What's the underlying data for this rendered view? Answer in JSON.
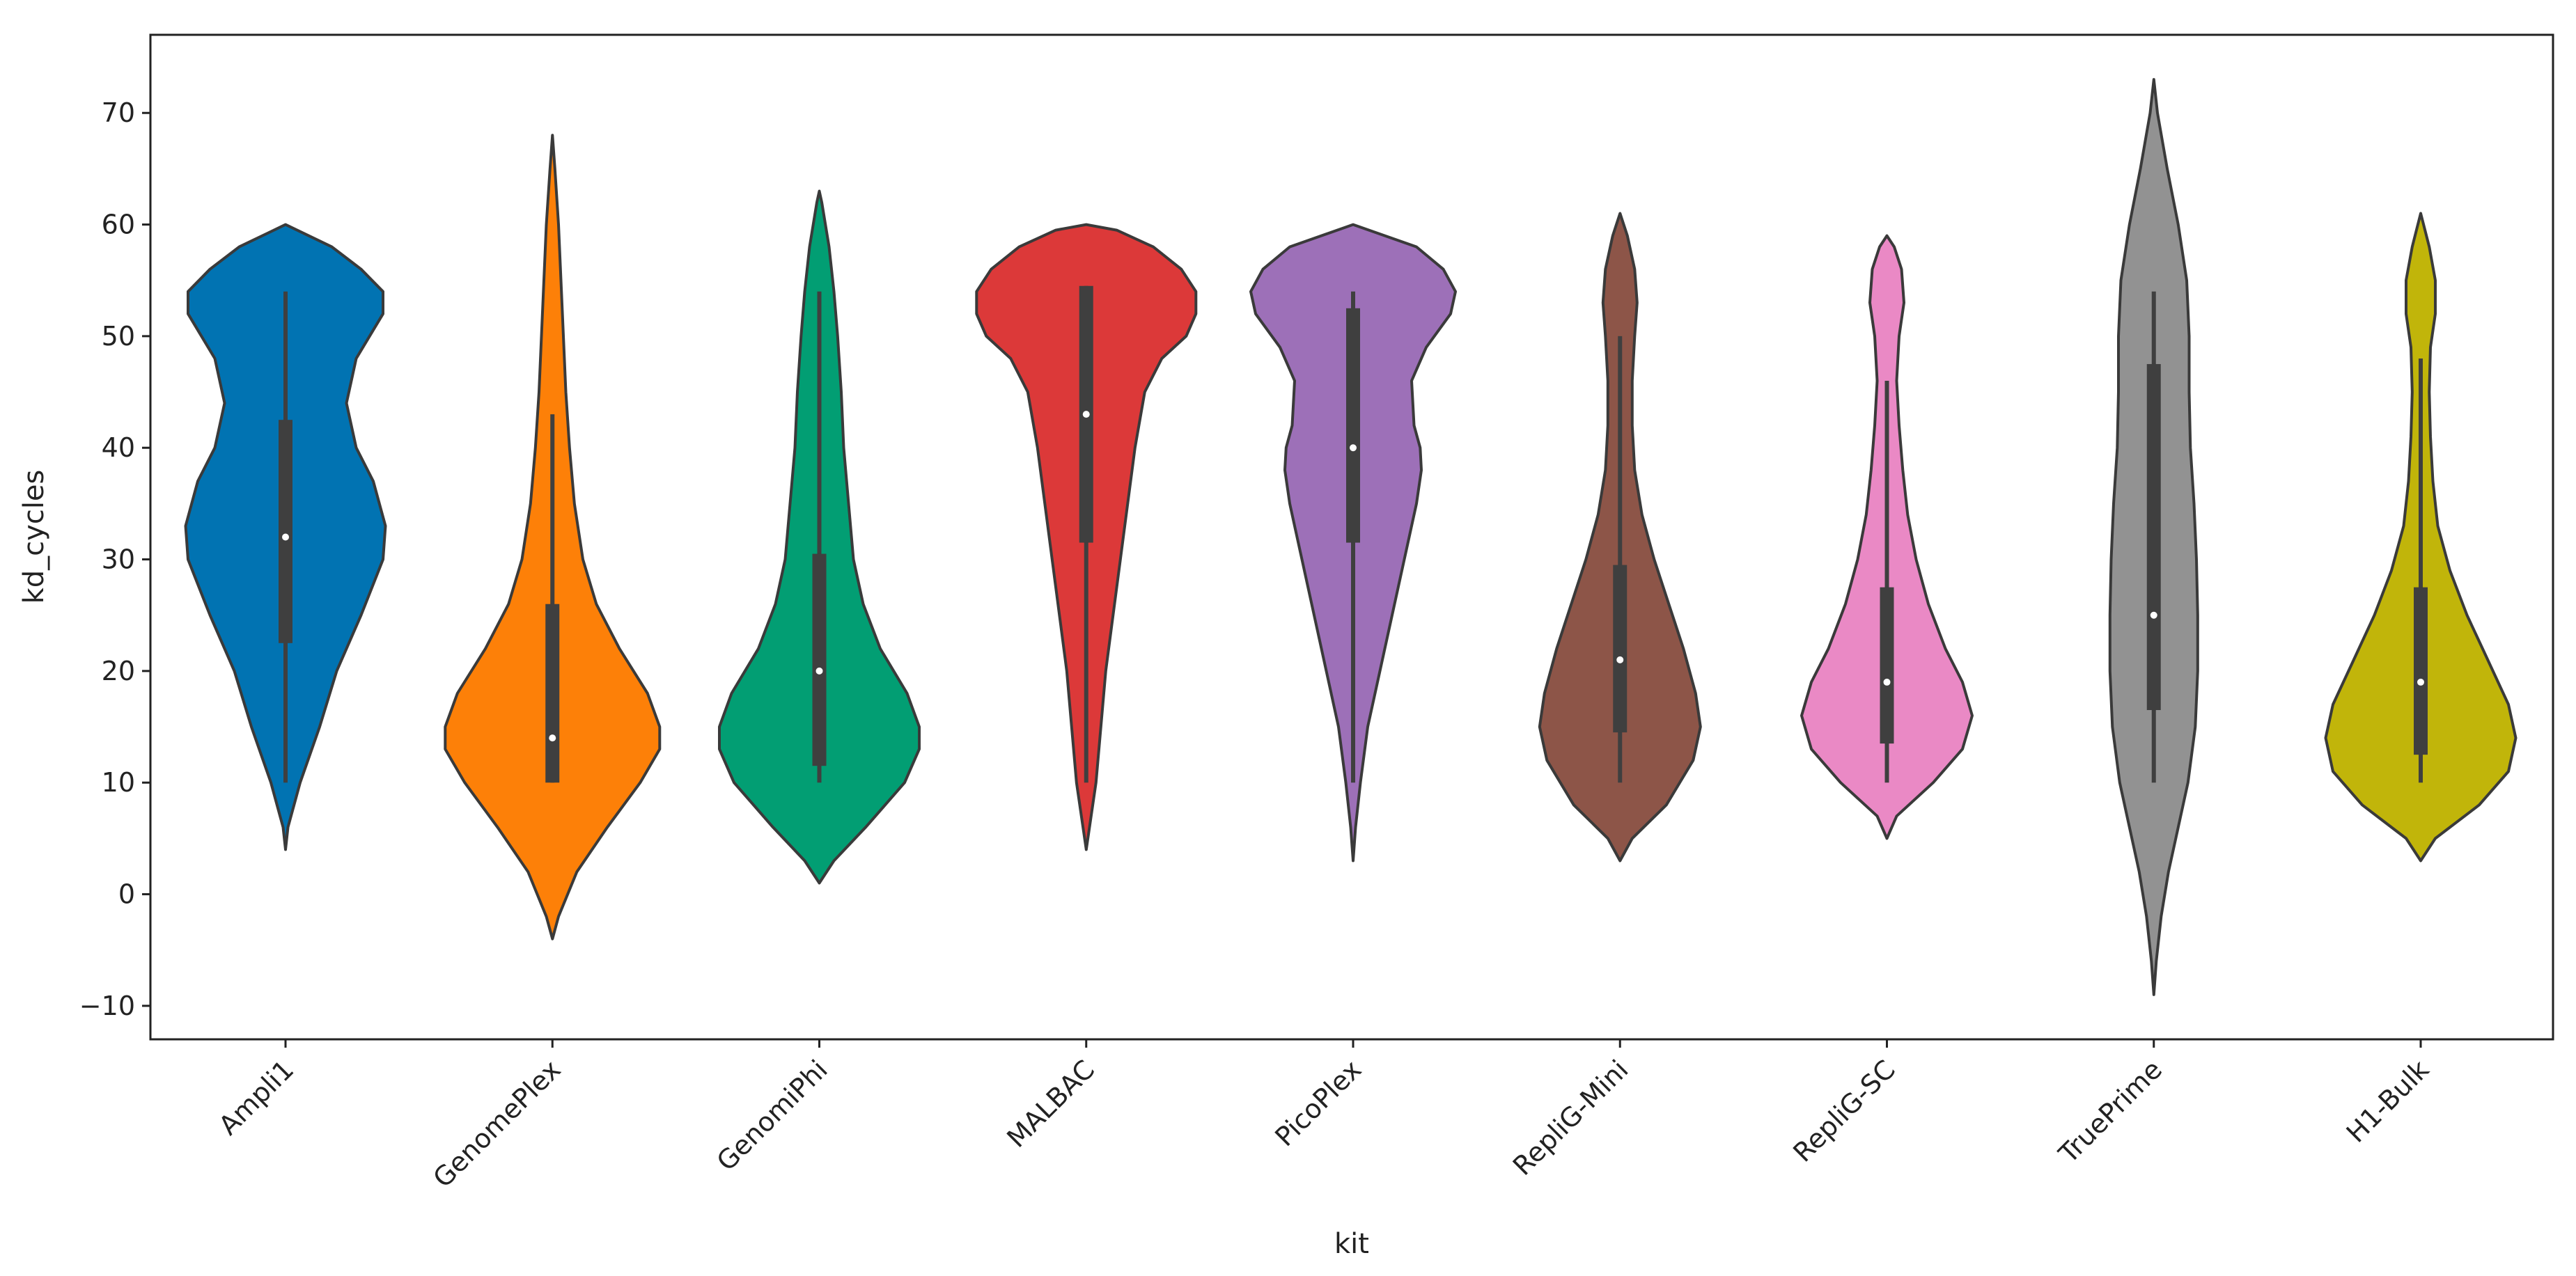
{
  "chart_data": {
    "type": "violin",
    "xlabel": "kit",
    "ylabel": "kd_cycles",
    "ylim": [
      -13,
      77
    ],
    "yticks": [
      -10,
      0,
      10,
      20,
      30,
      40,
      50,
      60,
      70
    ],
    "categories": [
      "Ampli1",
      "GenomePlex",
      "GenomiPhi",
      "MALBAC",
      "PicoPlex",
      "RepliG-Mini",
      "RepliG-SC",
      "TruePrime",
      "H1-Bulk"
    ],
    "series": [
      {
        "category": "Ampli1",
        "color": "#0173b2",
        "kde_min": 4,
        "kde_max": 60,
        "profile": [
          [
            4,
            0.0
          ],
          [
            6,
            0.02
          ],
          [
            10,
            0.12
          ],
          [
            15,
            0.28
          ],
          [
            20,
            0.42
          ],
          [
            25,
            0.62
          ],
          [
            30,
            0.8
          ],
          [
            33,
            0.82
          ],
          [
            37,
            0.72
          ],
          [
            40,
            0.58
          ],
          [
            44,
            0.5
          ],
          [
            48,
            0.58
          ],
          [
            52,
            0.8
          ],
          [
            54,
            0.8
          ],
          [
            56,
            0.62
          ],
          [
            58,
            0.38
          ],
          [
            60,
            0.0
          ]
        ],
        "whisker_low": 10,
        "q1": 22.5,
        "median": 32,
        "q3": 42.5,
        "whisker_high": 54
      },
      {
        "category": "GenomePlex",
        "color": "#fd8008",
        "kde_min": -4,
        "kde_max": 68,
        "profile": [
          [
            -4,
            0.0
          ],
          [
            -2,
            0.05
          ],
          [
            2,
            0.2
          ],
          [
            6,
            0.45
          ],
          [
            10,
            0.72
          ],
          [
            13,
            0.88
          ],
          [
            15,
            0.88
          ],
          [
            18,
            0.78
          ],
          [
            22,
            0.55
          ],
          [
            26,
            0.36
          ],
          [
            30,
            0.25
          ],
          [
            35,
            0.18
          ],
          [
            40,
            0.14
          ],
          [
            45,
            0.11
          ],
          [
            50,
            0.09
          ],
          [
            55,
            0.07
          ],
          [
            60,
            0.05
          ],
          [
            65,
            0.02
          ],
          [
            68,
            0.0
          ]
        ],
        "whisker_low": 10,
        "q1": 10,
        "median": 14,
        "q3": 26,
        "whisker_high": 43
      },
      {
        "category": "GenomiPhi",
        "color": "#029e73",
        "kde_min": 1,
        "kde_max": 63,
        "profile": [
          [
            1,
            0.0
          ],
          [
            3,
            0.12
          ],
          [
            6,
            0.38
          ],
          [
            10,
            0.7
          ],
          [
            13,
            0.82
          ],
          [
            15,
            0.82
          ],
          [
            18,
            0.72
          ],
          [
            22,
            0.5
          ],
          [
            26,
            0.36
          ],
          [
            30,
            0.28
          ],
          [
            35,
            0.24
          ],
          [
            40,
            0.2
          ],
          [
            45,
            0.18
          ],
          [
            50,
            0.15
          ],
          [
            54,
            0.12
          ],
          [
            58,
            0.08
          ],
          [
            62,
            0.02
          ],
          [
            63,
            0.0
          ]
        ],
        "whisker_low": 10,
        "q1": 11.5,
        "median": 20,
        "q3": 30.5,
        "whisker_high": 54
      },
      {
        "category": "MALBAC",
        "color": "#dc3939",
        "kde_min": 4,
        "kde_max": 60,
        "profile": [
          [
            4,
            0.0
          ],
          [
            7,
            0.04
          ],
          [
            10,
            0.08
          ],
          [
            15,
            0.12
          ],
          [
            20,
            0.16
          ],
          [
            25,
            0.22
          ],
          [
            30,
            0.28
          ],
          [
            35,
            0.34
          ],
          [
            40,
            0.4
          ],
          [
            45,
            0.48
          ],
          [
            48,
            0.62
          ],
          [
            50,
            0.82
          ],
          [
            52,
            0.9
          ],
          [
            54,
            0.9
          ],
          [
            56,
            0.78
          ],
          [
            58,
            0.55
          ],
          [
            59.5,
            0.25
          ],
          [
            60,
            0.0
          ]
        ],
        "whisker_low": 10,
        "q1": 31.5,
        "median": 43,
        "q3": 54.5,
        "whisker_high": 54.5
      },
      {
        "category": "PicoPlex",
        "color": "#9d70b8",
        "kde_min": 3,
        "kde_max": 60,
        "profile": [
          [
            3,
            0.0
          ],
          [
            6,
            0.02
          ],
          [
            10,
            0.06
          ],
          [
            15,
            0.12
          ],
          [
            20,
            0.22
          ],
          [
            25,
            0.32
          ],
          [
            30,
            0.42
          ],
          [
            35,
            0.52
          ],
          [
            38,
            0.56
          ],
          [
            40,
            0.55
          ],
          [
            42,
            0.5
          ],
          [
            46,
            0.48
          ],
          [
            49,
            0.6
          ],
          [
            52,
            0.8
          ],
          [
            54,
            0.84
          ],
          [
            56,
            0.74
          ],
          [
            58,
            0.52
          ],
          [
            60,
            0.0
          ]
        ],
        "whisker_low": 10,
        "q1": 31.5,
        "median": 40,
        "q3": 52.5,
        "whisker_high": 54
      },
      {
        "category": "RepliG-Mini",
        "color": "#8d5548",
        "kde_min": 3,
        "kde_max": 61,
        "profile": [
          [
            3,
            0.0
          ],
          [
            5,
            0.1
          ],
          [
            8,
            0.38
          ],
          [
            12,
            0.6
          ],
          [
            15,
            0.66
          ],
          [
            18,
            0.62
          ],
          [
            22,
            0.52
          ],
          [
            26,
            0.4
          ],
          [
            30,
            0.28
          ],
          [
            34,
            0.18
          ],
          [
            38,
            0.12
          ],
          [
            42,
            0.1
          ],
          [
            46,
            0.1
          ],
          [
            50,
            0.12
          ],
          [
            53,
            0.14
          ],
          [
            56,
            0.12
          ],
          [
            59,
            0.06
          ],
          [
            61,
            0.0
          ]
        ],
        "whisker_low": 10,
        "q1": 14.5,
        "median": 21,
        "q3": 29.5,
        "whisker_high": 50
      },
      {
        "category": "RepliG-SC",
        "color": "#ea89c5",
        "kde_min": 5,
        "kde_max": 59,
        "profile": [
          [
            5,
            0.0
          ],
          [
            7,
            0.08
          ],
          [
            10,
            0.38
          ],
          [
            13,
            0.62
          ],
          [
            16,
            0.7
          ],
          [
            19,
            0.62
          ],
          [
            22,
            0.48
          ],
          [
            26,
            0.34
          ],
          [
            30,
            0.24
          ],
          [
            34,
            0.17
          ],
          [
            38,
            0.13
          ],
          [
            42,
            0.1
          ],
          [
            46,
            0.08
          ],
          [
            50,
            0.1
          ],
          [
            53,
            0.14
          ],
          [
            56,
            0.12
          ],
          [
            58,
            0.06
          ],
          [
            59,
            0.0
          ]
        ],
        "whisker_low": 10,
        "q1": 13.5,
        "median": 19,
        "q3": 27.5,
        "whisker_high": 46
      },
      {
        "category": "TruePrime",
        "color": "#929292",
        "kde_min": -9,
        "kde_max": 73,
        "profile": [
          [
            -9,
            0.0
          ],
          [
            -6,
            0.02
          ],
          [
            -2,
            0.06
          ],
          [
            2,
            0.12
          ],
          [
            6,
            0.2
          ],
          [
            10,
            0.28
          ],
          [
            15,
            0.34
          ],
          [
            20,
            0.36
          ],
          [
            25,
            0.36
          ],
          [
            30,
            0.35
          ],
          [
            35,
            0.33
          ],
          [
            40,
            0.3
          ],
          [
            45,
            0.29
          ],
          [
            50,
            0.29
          ],
          [
            55,
            0.27
          ],
          [
            60,
            0.2
          ],
          [
            65,
            0.11
          ],
          [
            70,
            0.03
          ],
          [
            73,
            0.0
          ]
        ],
        "whisker_low": 10,
        "q1": 16.5,
        "median": 25,
        "q3": 47.5,
        "whisker_high": 54
      },
      {
        "category": "H1-Bulk",
        "color": "#c1b50a",
        "kde_min": 3,
        "kde_max": 61,
        "profile": [
          [
            3,
            0.0
          ],
          [
            5,
            0.12
          ],
          [
            8,
            0.48
          ],
          [
            11,
            0.72
          ],
          [
            14,
            0.78
          ],
          [
            17,
            0.72
          ],
          [
            21,
            0.55
          ],
          [
            25,
            0.38
          ],
          [
            29,
            0.24
          ],
          [
            33,
            0.14
          ],
          [
            37,
            0.1
          ],
          [
            41,
            0.08
          ],
          [
            45,
            0.07
          ],
          [
            49,
            0.08
          ],
          [
            52,
            0.12
          ],
          [
            55,
            0.12
          ],
          [
            58,
            0.07
          ],
          [
            61,
            0.0
          ]
        ],
        "whisker_low": 10,
        "q1": 12.5,
        "median": 19,
        "q3": 27.5,
        "whisker_high": 48
      }
    ]
  }
}
